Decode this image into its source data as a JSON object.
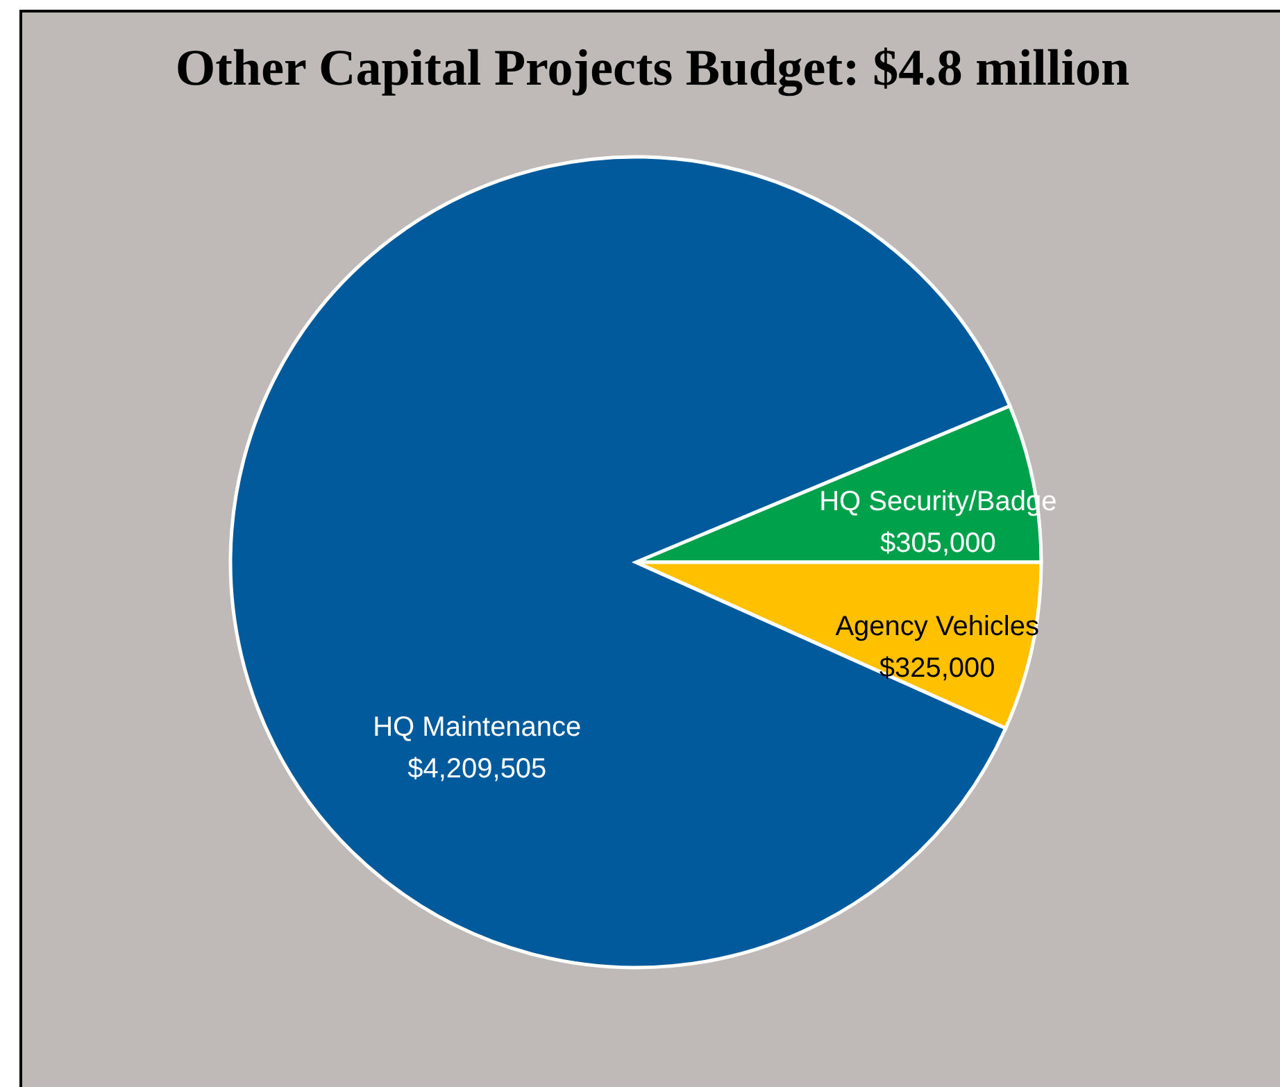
{
  "chart_data": {
    "type": "pie",
    "title": "Other Capital Projects Budget: $4.8 million",
    "categories": [
      "HQ Security/Badge",
      "Agency Vehicles",
      "HQ Maintenance"
    ],
    "values": [
      305000,
      325000,
      4209505
    ],
    "colors": [
      "#00a14b",
      "#ffc000",
      "#005a9c"
    ],
    "value_labels": [
      "$305,000",
      "$325,000",
      "$4,209,505"
    ]
  }
}
